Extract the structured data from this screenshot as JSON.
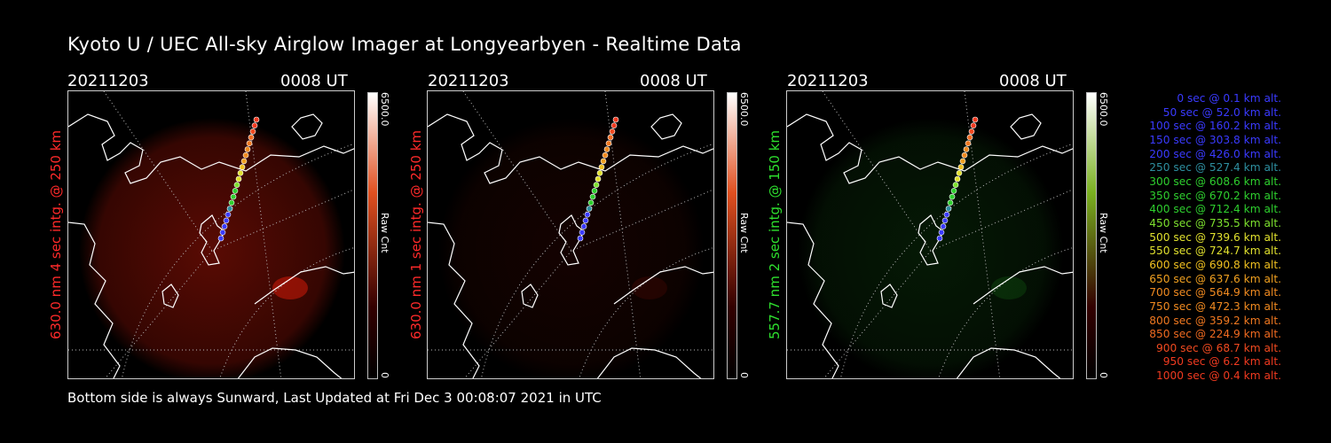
{
  "title": "Kyoto U / UEC All-sky Airglow Imager at Longyearbyen - Realtime Data",
  "footer": "Bottom side is always Sunward, Last Updated at Fri Dec  3 00:08:07 2021 in UTC",
  "panels": [
    {
      "date": "20211203",
      "time": "0008 UT",
      "ylabel": "630.0 nm 4 sec intg. @ 250 km",
      "label_color": "#ff2a2a",
      "glow": "#ff1e0a",
      "glow_strength": 0.35,
      "colorbar_max": "6500.0",
      "colorbar_min": "0",
      "colorbar_unit": "Raw Cnt",
      "colorbar_top": "#ffffff",
      "colorbar_mid": "#e05020"
    },
    {
      "date": "20211203",
      "time": "0008 UT",
      "ylabel": "630.0 nm 1 sec intg. @ 250 km",
      "label_color": "#ff2a2a",
      "glow": "#ff1e0a",
      "glow_strength": 0.08,
      "colorbar_max": "6500.0",
      "colorbar_min": "0",
      "colorbar_unit": "Raw Cnt",
      "colorbar_top": "#ffffff",
      "colorbar_mid": "#e05020"
    },
    {
      "date": "20211203",
      "time": "0008 UT",
      "ylabel": "557.7 nm 2 sec intg. @ 150 km",
      "label_color": "#2ee02e",
      "glow": "#1e8c1e",
      "glow_strength": 0.18,
      "colorbar_max": "6500.0",
      "colorbar_min": "0",
      "colorbar_unit": "Raw Cnt",
      "colorbar_top": "#ffffff",
      "colorbar_mid": "#7ab020"
    }
  ],
  "legend": [
    {
      "text": "0 sec @   0.1 km alt.",
      "color": "#3a3aff"
    },
    {
      "text": "50 sec @  52.0 km alt.",
      "color": "#3a3aff"
    },
    {
      "text": "100 sec @ 160.2 km alt.",
      "color": "#3a3aff"
    },
    {
      "text": "150 sec @ 303.8 km alt.",
      "color": "#3a3aff"
    },
    {
      "text": "200 sec @ 426.0 km alt.",
      "color": "#3a3aff"
    },
    {
      "text": "250 sec @ 527.4 km alt.",
      "color": "#2e8fa0"
    },
    {
      "text": "300 sec @ 608.6 km alt.",
      "color": "#2ecf2e"
    },
    {
      "text": "350 sec @ 670.2 km alt.",
      "color": "#2ecf2e"
    },
    {
      "text": "400 sec @ 712.4 km alt.",
      "color": "#2ecf2e"
    },
    {
      "text": "450 sec @ 735.5 km alt.",
      "color": "#7de02e"
    },
    {
      "text": "500 sec @ 739.6 km alt.",
      "color": "#e0e02e"
    },
    {
      "text": "550 sec @ 724.7 km alt.",
      "color": "#e0e02e"
    },
    {
      "text": "600 sec @ 690.8 km alt.",
      "color": "#f0c020"
    },
    {
      "text": "650 sec @ 637.6 km alt.",
      "color": "#f0a020"
    },
    {
      "text": "700 sec @ 564.9 km alt.",
      "color": "#f08a20"
    },
    {
      "text": "750 sec @ 472.3 km alt.",
      "color": "#f08a20"
    },
    {
      "text": "800 sec @ 359.2 km alt.",
      "color": "#f07820"
    },
    {
      "text": "850 sec @ 224.9 km alt.",
      "color": "#f06a20"
    },
    {
      "text": "900 sec @  68.7 km alt.",
      "color": "#f04a20"
    },
    {
      "text": "950 sec @   6.2 km alt.",
      "color": "#f03a20"
    },
    {
      "text": "1000 sec @   0.4 km alt.",
      "color": "#f03a20"
    }
  ]
}
